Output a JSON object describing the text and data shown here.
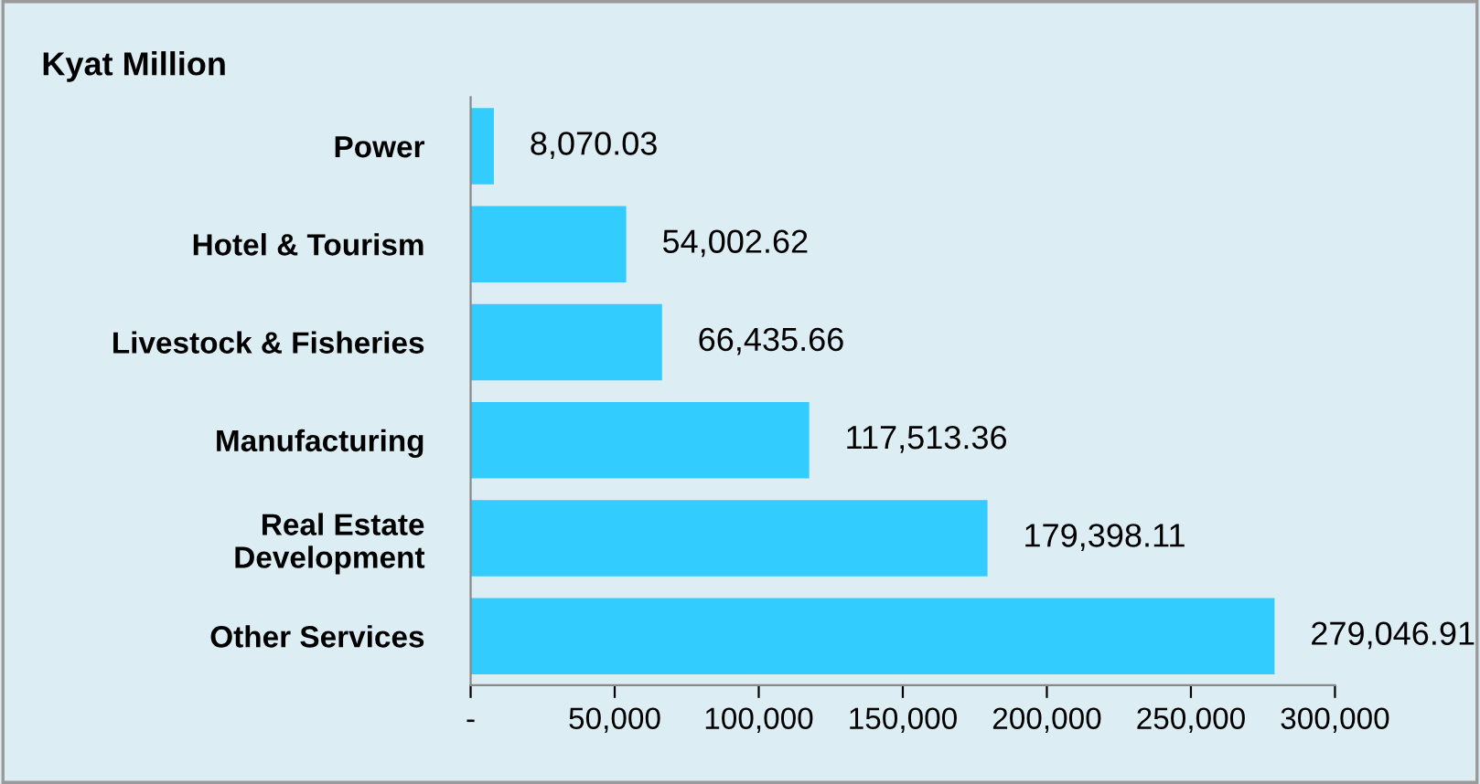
{
  "chart_data": {
    "type": "bar",
    "orientation": "horizontal",
    "title": "Kyat Million",
    "categories": [
      "Power",
      "Hotel & Tourism",
      "Livestock & Fisheries",
      "Manufacturing",
      "Real Estate\nDevelopment",
      "Other Services"
    ],
    "values": [
      8070.03,
      54002.62,
      66435.66,
      117513.36,
      179398.11,
      279046.91
    ],
    "value_labels": [
      "8,070.03",
      "54,002.62",
      "66,435.66",
      "117,513.36",
      "179,398.11",
      "279,046.91"
    ],
    "color": "#33ccff",
    "xlim": [
      0,
      300000
    ],
    "xticks": [
      {
        "value": 0,
        "label": "-"
      },
      {
        "value": 50000,
        "label": "50,000"
      },
      {
        "value": 100000,
        "label": "100,000"
      },
      {
        "value": 150000,
        "label": "150,000"
      },
      {
        "value": 200000,
        "label": "200,000"
      },
      {
        "value": 250000,
        "label": "250,000"
      },
      {
        "value": 300000,
        "label": "300,000"
      }
    ],
    "grid": false,
    "legend": false
  }
}
